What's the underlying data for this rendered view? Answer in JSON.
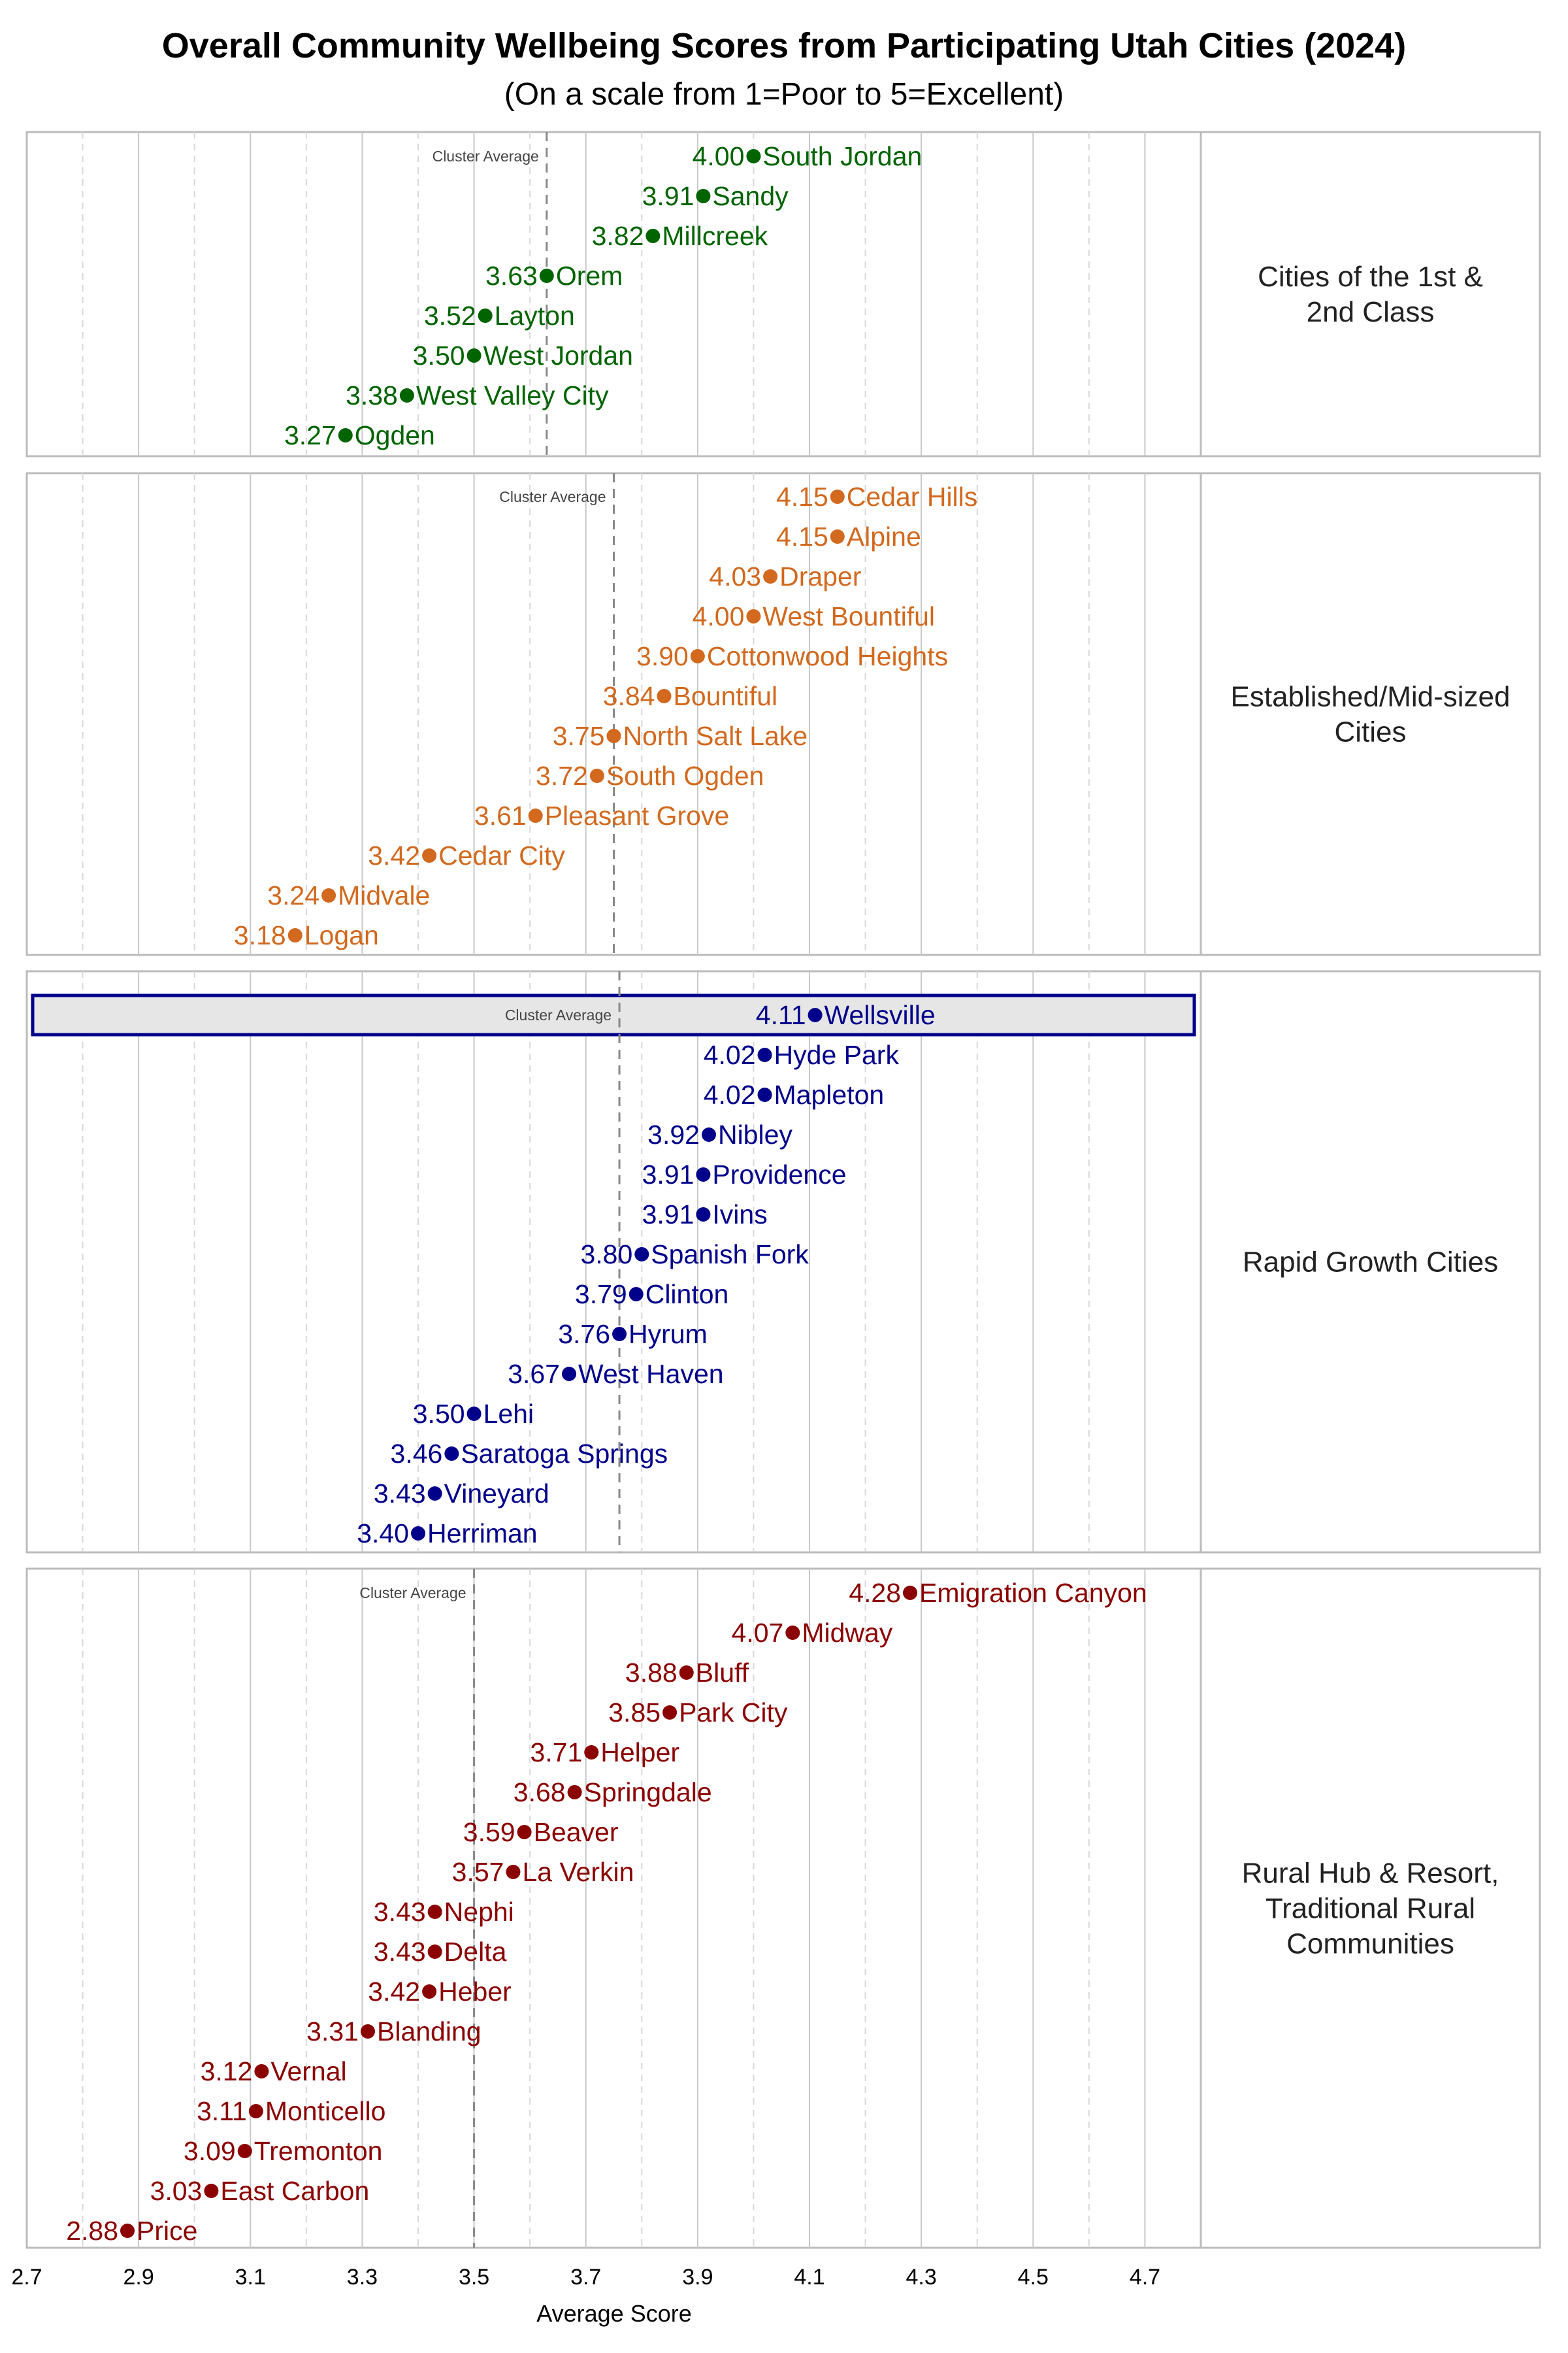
{
  "chart_data": {
    "type": "scatter",
    "title": "Overall Community Wellbeing Scores from Participating Utah Cities (2024)",
    "subtitle": "(On a scale from 1=Poor to 5=Excellent)",
    "xlabel": "Average Score",
    "xlim": [
      2.7,
      4.8
    ],
    "xticks": [
      "2.7",
      "2.9",
      "3.1",
      "3.3",
      "3.5",
      "3.7",
      "3.9",
      "4.1",
      "4.3",
      "4.5",
      "4.7"
    ],
    "grid": true,
    "average_label": "Cluster Average",
    "highlight": "Wellsville",
    "highlight_colors": {
      "fill": "#e6e6e6",
      "border": "#00008B"
    },
    "panels": [
      {
        "label": "Cities of the 1st & 2nd Class",
        "color": "#006400",
        "average": 3.63,
        "cities": [
          "South Jordan",
          "Sandy",
          "Millcreek",
          "Orem",
          "Layton",
          "West Jordan",
          "West Valley City",
          "Ogden"
        ],
        "values": [
          4.0,
          3.91,
          3.82,
          3.63,
          3.52,
          3.5,
          3.38,
          3.27
        ]
      },
      {
        "label": "Established/Mid-sized Cities",
        "color": "#D2691E",
        "average": 3.75,
        "cities": [
          "Cedar Hills",
          "Alpine",
          "Draper",
          "West Bountiful",
          "Cottonwood Heights",
          "Bountiful",
          "North Salt Lake",
          "South Ogden",
          "Pleasant Grove",
          "Cedar City",
          "Midvale",
          "Logan"
        ],
        "values": [
          4.15,
          4.15,
          4.03,
          4.0,
          3.9,
          3.84,
          3.75,
          3.72,
          3.61,
          3.42,
          3.24,
          3.18
        ]
      },
      {
        "label": "Rapid Growth Cities",
        "color": "#00008B",
        "average": 3.76,
        "cities": [
          "Wellsville",
          "Hyde Park",
          "Mapleton",
          "Nibley",
          "Providence",
          "Ivins",
          "Spanish Fork",
          "Clinton",
          "Hyrum",
          "West Haven",
          "Lehi",
          "Saratoga Springs",
          "Vineyard",
          "Herriman"
        ],
        "values": [
          4.11,
          4.02,
          4.02,
          3.92,
          3.91,
          3.91,
          3.8,
          3.79,
          3.76,
          3.67,
          3.5,
          3.46,
          3.43,
          3.4
        ]
      },
      {
        "label": "Rural Hub & Resort, Traditional Rural Communities",
        "color": "#8B0000",
        "average": 3.5,
        "cities": [
          "Emigration Canyon",
          "Midway",
          "Bluff",
          "Park City",
          "Helper",
          "Springdale",
          "Beaver",
          "La Verkin",
          "Nephi",
          "Delta",
          "Heber",
          "Blanding",
          "Vernal",
          "Monticello",
          "Tremonton",
          "East Carbon",
          "Price"
        ],
        "values": [
          4.28,
          4.07,
          3.88,
          3.85,
          3.71,
          3.68,
          3.59,
          3.57,
          3.43,
          3.43,
          3.42,
          3.31,
          3.12,
          3.11,
          3.09,
          3.03,
          2.88
        ]
      }
    ]
  }
}
